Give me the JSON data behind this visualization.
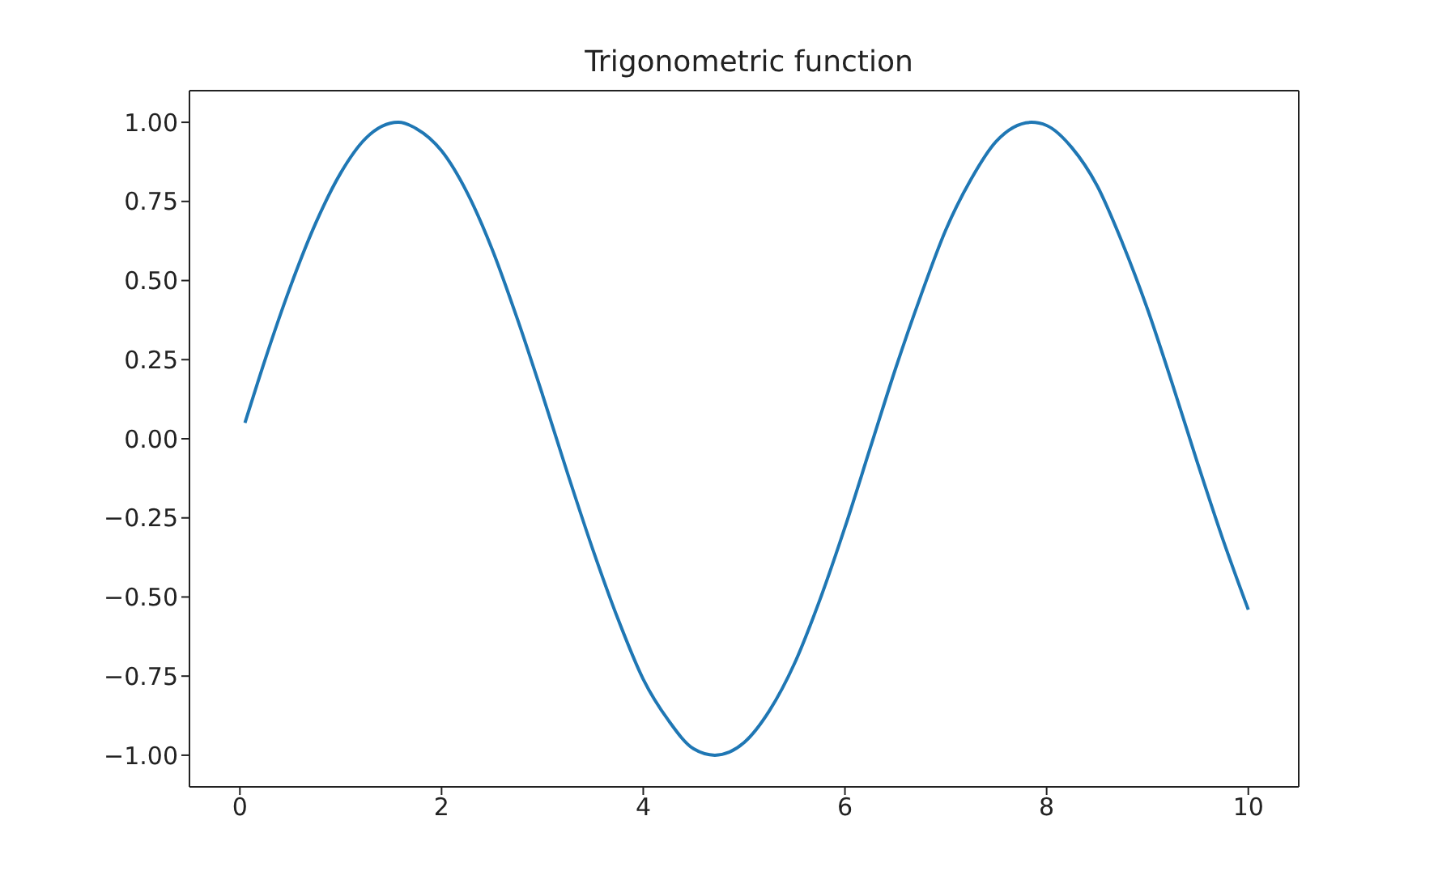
{
  "chart_data": {
    "type": "line",
    "title": "Trigonometric function",
    "x": [
      0.05,
      0.25,
      0.5,
      0.75,
      1,
      1.25,
      1.57,
      1.75,
      2,
      2.25,
      2.5,
      2.75,
      3,
      3.25,
      3.5,
      3.75,
      4,
      4.25,
      4.5,
      4.71,
      5,
      5.25,
      5.5,
      5.75,
      6,
      6.25,
      6.5,
      6.75,
      7,
      7.25,
      7.5,
      7.85,
      8,
      8.25,
      8.5,
      8.75,
      9,
      9.25,
      9.5,
      9.75,
      10
    ],
    "series": [
      {
        "color": "#1f77b4",
        "values": [
          0.05,
          0.25,
          0.48,
          0.68,
          0.84,
          0.95,
          1.0,
          0.98,
          0.91,
          0.78,
          0.6,
          0.38,
          0.14,
          -0.11,
          -0.35,
          -0.57,
          -0.76,
          -0.89,
          -0.98,
          -1.0,
          -0.96,
          -0.86,
          -0.71,
          -0.51,
          -0.28,
          -0.03,
          0.22,
          0.45,
          0.66,
          0.82,
          0.94,
          1.0,
          0.99,
          0.92,
          0.8,
          0.62,
          0.41,
          0.17,
          -0.08,
          -0.32,
          -0.54
        ]
      }
    ],
    "xlim": [
      -0.5,
      10.5
    ],
    "xticks": [
      0,
      2,
      4,
      6,
      8,
      10
    ],
    "ylim": [
      -1.1,
      1.1
    ],
    "yticks": [
      {
        "value": -1,
        "label": "−1.00"
      },
      {
        "value": -0.75,
        "label": "−0.75"
      },
      {
        "value": -0.5,
        "label": "−0.50"
      },
      {
        "value": -0.25,
        "label": "−0.25"
      },
      {
        "value": 0,
        "label": "0.00"
      },
      {
        "value": 0.25,
        "label": "0.25"
      },
      {
        "value": 0.5,
        "label": "0.50"
      },
      {
        "value": 0.75,
        "label": "0.75"
      },
      {
        "value": 1,
        "label": "1.00"
      }
    ],
    "grid": false,
    "marker": "none",
    "line_style": "solid"
  }
}
